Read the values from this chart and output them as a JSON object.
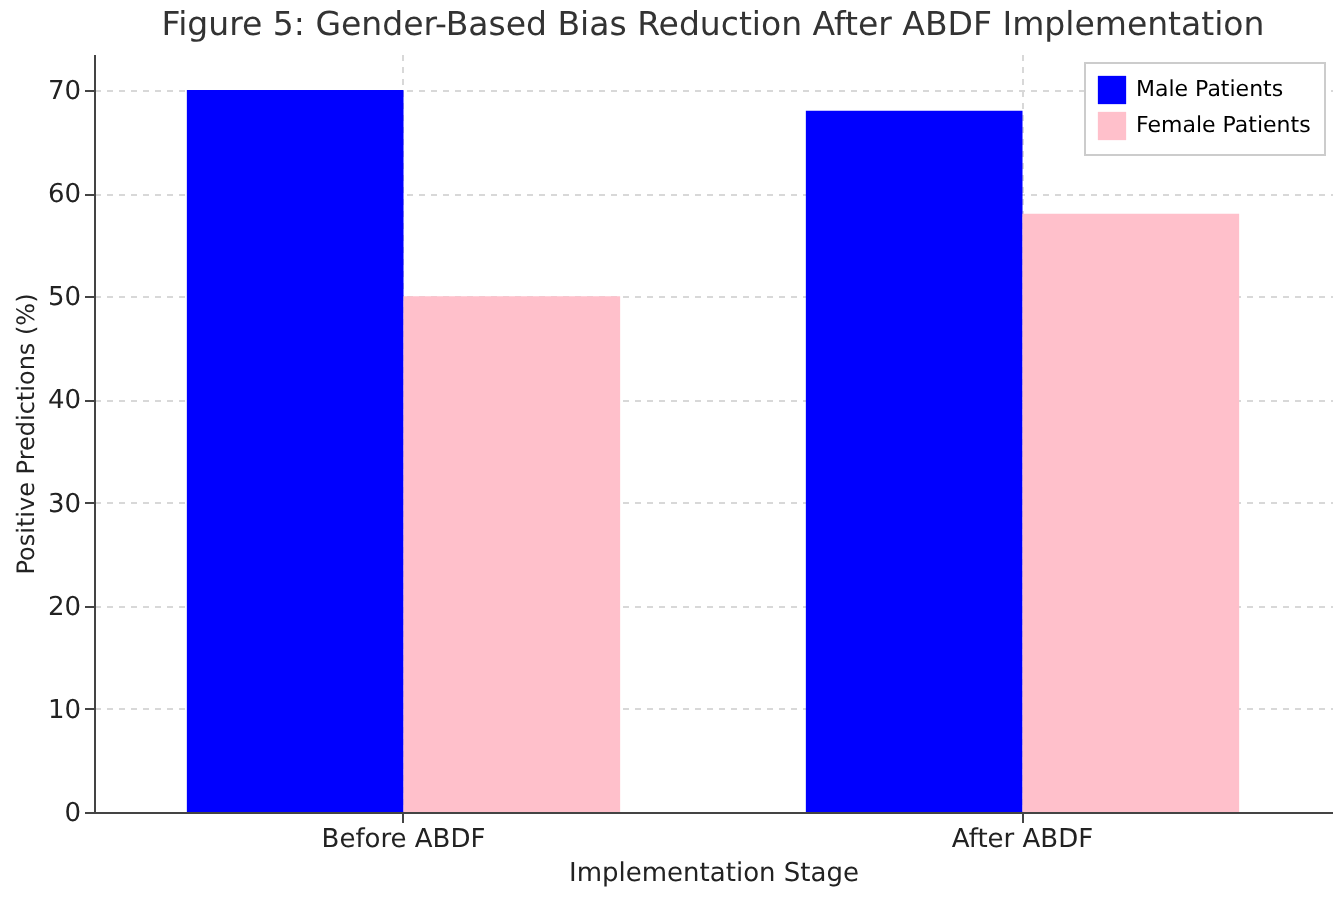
{
  "chart_data": {
    "type": "bar",
    "title": "Figure 5: Gender-Based Bias Reduction After ABDF Implementation",
    "xlabel": "Implementation Stage",
    "ylabel": "Positive Predictions (%)",
    "categories": [
      "Before ABDF",
      "After ABDF"
    ],
    "series": [
      {
        "name": "Male Patients",
        "color": "#0000ff",
        "values": [
          70,
          68
        ]
      },
      {
        "name": "Female Patients",
        "color": "#ffc0cb",
        "values": [
          50,
          58
        ]
      }
    ],
    "ylim": [
      0,
      73.5
    ],
    "yticks": [
      0,
      10,
      20,
      30,
      40,
      50,
      60,
      70
    ],
    "grid": true,
    "legend": "top right"
  }
}
